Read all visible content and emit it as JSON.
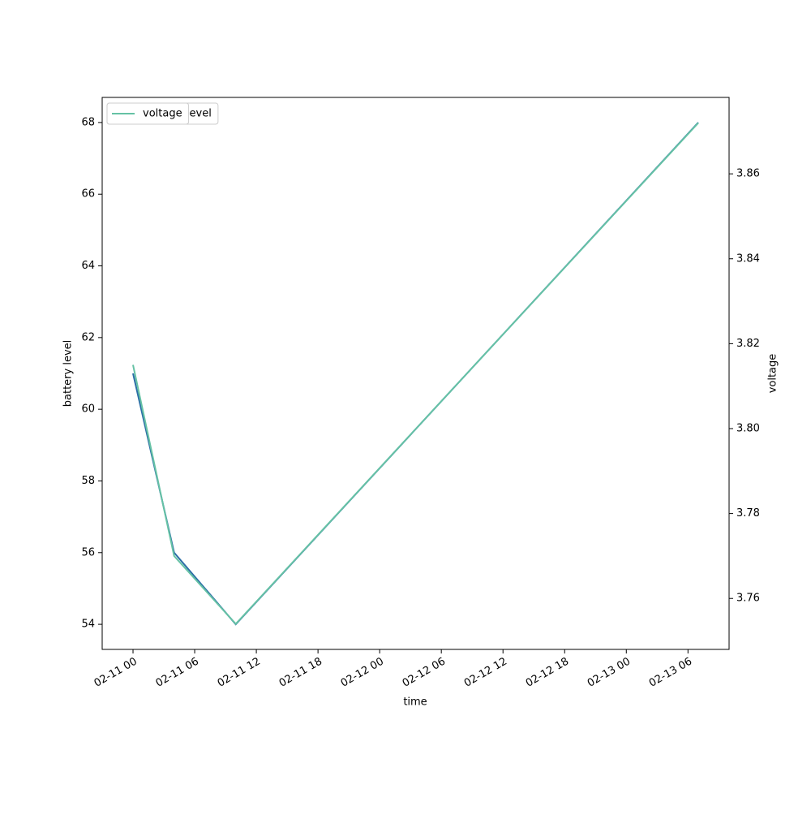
{
  "chart_data": {
    "type": "line",
    "x_label": "time",
    "y_label": "battery level",
    "y2_label": "voltage",
    "x": [
      "02-11 00",
      "02-11 04",
      "02-11 10",
      "02-13 07"
    ],
    "series": [
      {
        "name": "battery_level",
        "color": "#2b6ea6",
        "values": [
          61,
          56,
          54,
          68
        ]
      },
      {
        "name": "voltage",
        "color": "#66c2a5",
        "axis": "y2",
        "values": [
          3.815,
          3.77,
          3.754,
          3.872
        ]
      }
    ],
    "xlim": [
      "02-10 21",
      "02-13 10"
    ],
    "xticks": [
      "02-11 00",
      "02-11 06",
      "02-11 12",
      "02-11 18",
      "02-12 00",
      "02-12 06",
      "02-12 12",
      "02-12 18",
      "02-13 00",
      "02-13 06"
    ],
    "ylim": [
      53.3,
      68.7
    ],
    "yticks": [
      54,
      56,
      58,
      60,
      62,
      64,
      66,
      68
    ],
    "y2lim": [
      3.748,
      3.878
    ],
    "y2ticks": [
      3.76,
      3.78,
      3.8,
      3.82,
      3.84,
      3.86
    ],
    "legend": "upper left"
  }
}
